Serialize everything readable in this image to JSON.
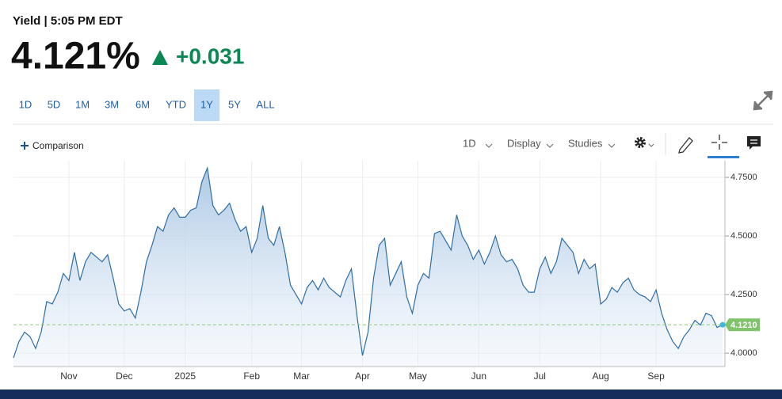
{
  "header": {
    "title": "Yield | 5:05 PM EDT",
    "price": "4.121%",
    "change": "+0.031"
  },
  "ranges": [
    "1D",
    "5D",
    "1M",
    "3M",
    "6M",
    "YTD",
    "1Y",
    "5Y",
    "ALL"
  ],
  "active_range": "1Y",
  "toolbar": {
    "comparison": "Comparison",
    "interval": "1D",
    "display": "Display",
    "studies": "Studies"
  },
  "chart_data": {
    "type": "area",
    "color": "#2e6da4",
    "categories": [
      null,
      null,
      null,
      null,
      null,
      null,
      null,
      null,
      null,
      null,
      "Nov",
      null,
      null,
      null,
      null,
      null,
      null,
      null,
      null,
      null,
      "Dec",
      null,
      null,
      null,
      null,
      null,
      null,
      null,
      null,
      null,
      null,
      "2025",
      null,
      null,
      null,
      null,
      null,
      null,
      null,
      null,
      null,
      null,
      null,
      "Feb",
      null,
      null,
      null,
      null,
      null,
      null,
      null,
      null,
      "Mar",
      null,
      null,
      null,
      null,
      null,
      null,
      null,
      null,
      null,
      null,
      "Apr",
      null,
      null,
      null,
      null,
      null,
      null,
      null,
      null,
      null,
      "May",
      null,
      null,
      null,
      null,
      null,
      null,
      null,
      null,
      null,
      null,
      "Jun",
      null,
      null,
      null,
      null,
      null,
      null,
      null,
      null,
      null,
      null,
      "Jul",
      null,
      null,
      null,
      null,
      null,
      null,
      null,
      null,
      null,
      null,
      "Aug",
      null,
      null,
      null,
      null,
      null,
      null,
      null,
      null,
      null,
      "Sep",
      null,
      null,
      null,
      null,
      null,
      null,
      null,
      null,
      null,
      null,
      null,
      null
    ],
    "values": [
      3.98,
      4.05,
      4.09,
      4.07,
      4.02,
      4.09,
      4.22,
      4.21,
      4.26,
      4.34,
      4.31,
      4.43,
      4.31,
      4.39,
      4.43,
      4.41,
      4.39,
      4.42,
      4.32,
      4.21,
      4.18,
      4.19,
      4.15,
      4.26,
      4.39,
      4.46,
      4.54,
      4.52,
      4.59,
      4.62,
      4.58,
      4.58,
      4.61,
      4.62,
      4.73,
      4.79,
      4.63,
      4.59,
      4.61,
      4.64,
      4.57,
      4.52,
      4.54,
      4.43,
      4.49,
      4.63,
      4.49,
      4.46,
      4.54,
      4.43,
      4.29,
      4.25,
      4.21,
      4.28,
      4.31,
      4.27,
      4.32,
      4.28,
      4.26,
      4.24,
      4.31,
      4.36,
      4.16,
      3.99,
      4.09,
      4.32,
      4.46,
      4.49,
      4.29,
      4.34,
      4.39,
      4.24,
      4.17,
      4.29,
      4.34,
      4.32,
      4.51,
      4.52,
      4.48,
      4.44,
      4.59,
      4.5,
      4.46,
      4.4,
      4.44,
      4.38,
      4.43,
      4.5,
      4.42,
      4.39,
      4.4,
      4.36,
      4.29,
      4.26,
      4.26,
      4.36,
      4.41,
      4.34,
      4.39,
      4.49,
      4.46,
      4.43,
      4.34,
      4.4,
      4.36,
      4.38,
      4.21,
      4.23,
      4.28,
      4.26,
      4.3,
      4.32,
      4.27,
      4.25,
      4.24,
      4.22,
      4.27,
      4.17,
      4.1,
      4.05,
      4.02,
      4.07,
      4.1,
      4.14,
      4.12,
      4.17,
      4.16,
      4.11,
      4.121
    ],
    "last_value_label": {
      "value": 4.121,
      "label": "4.1210"
    },
    "ylim": [
      3.943,
      4.821
    ],
    "yticks": [
      {
        "value": 4,
        "label": "4.0000"
      },
      {
        "value": 4.25,
        "label": "4.2500"
      },
      {
        "value": 4.5,
        "label": "4.5000"
      },
      {
        "value": 4.75,
        "label": "4.7500"
      }
    ],
    "grid": true
  }
}
